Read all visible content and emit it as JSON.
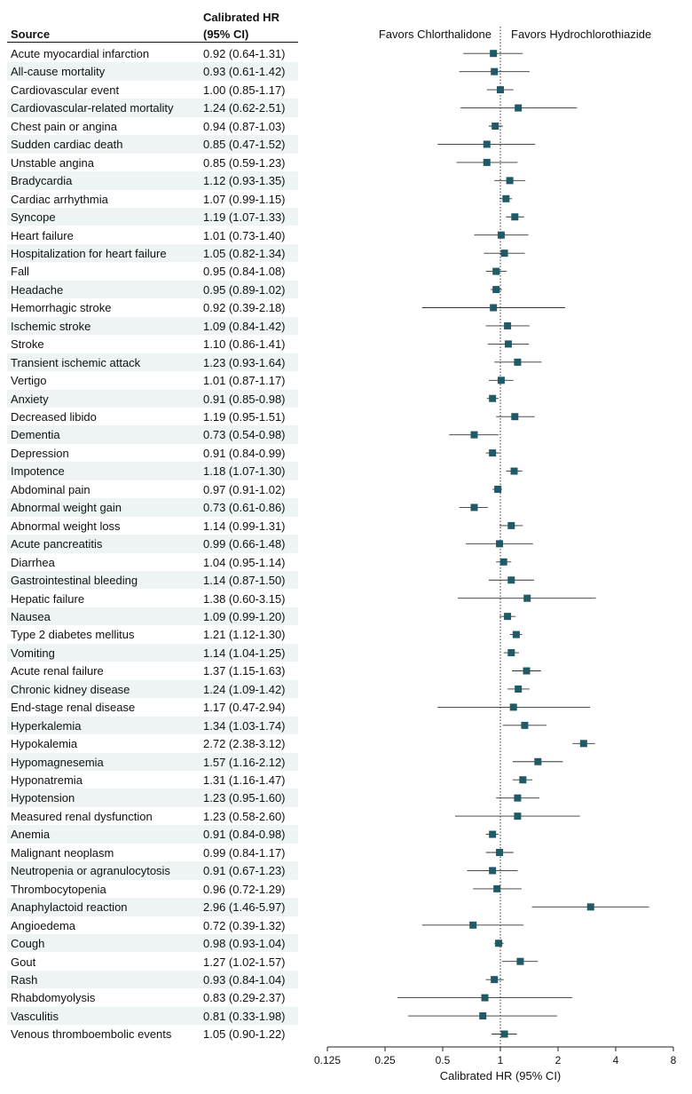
{
  "headers": {
    "source": "Source",
    "hr_line1": "Calibrated HR",
    "hr_line2": "(95% CI)"
  },
  "favors": {
    "left": "Favors Chlorthalidone",
    "right": "Favors Hydrochlorothiazide"
  },
  "colors": {
    "marker": "#1f5a66",
    "ci_line": "#333333",
    "row_shade": "#eef4f4"
  },
  "chart_data": {
    "type": "forest",
    "xlabel": "Calibrated HR (95% CI)",
    "xscale": "log2",
    "xlim": [
      0.125,
      8
    ],
    "xticks": [
      0.125,
      0.25,
      0.5,
      1,
      2,
      4,
      8
    ],
    "xtick_labels": [
      "0.125",
      "0.25",
      "0.5",
      "1",
      "2",
      "4",
      "8"
    ],
    "reference_line": 1,
    "rows": [
      {
        "source": "Acute myocardial infarction",
        "hr": 0.92,
        "lo": 0.64,
        "hi": 1.31,
        "label": "0.92 (0.64-1.31)"
      },
      {
        "source": "All-cause mortality",
        "hr": 0.93,
        "lo": 0.61,
        "hi": 1.42,
        "label": "0.93 (0.61-1.42)"
      },
      {
        "source": "Cardiovascular event",
        "hr": 1.0,
        "lo": 0.85,
        "hi": 1.17,
        "label": "1.00 (0.85-1.17)"
      },
      {
        "source": "Cardiovascular-related mortality",
        "hr": 1.24,
        "lo": 0.62,
        "hi": 2.51,
        "label": "1.24 (0.62-2.51)"
      },
      {
        "source": "Chest pain or angina",
        "hr": 0.94,
        "lo": 0.87,
        "hi": 1.03,
        "label": "0.94 (0.87-1.03)"
      },
      {
        "source": "Sudden cardiac death",
        "hr": 0.85,
        "lo": 0.47,
        "hi": 1.52,
        "label": "0.85 (0.47-1.52)"
      },
      {
        "source": "Unstable angina",
        "hr": 0.85,
        "lo": 0.59,
        "hi": 1.23,
        "label": "0.85 (0.59-1.23)"
      },
      {
        "source": "Bradycardia",
        "hr": 1.12,
        "lo": 0.93,
        "hi": 1.35,
        "label": "1.12 (0.93-1.35)"
      },
      {
        "source": "Cardiac arrhythmia",
        "hr": 1.07,
        "lo": 0.99,
        "hi": 1.15,
        "label": "1.07 (0.99-1.15)"
      },
      {
        "source": "Syncope",
        "hr": 1.19,
        "lo": 1.07,
        "hi": 1.33,
        "label": "1.19 (1.07-1.33)"
      },
      {
        "source": "Heart failure",
        "hr": 1.01,
        "lo": 0.73,
        "hi": 1.4,
        "label": "1.01 (0.73-1.40)"
      },
      {
        "source": "Hospitalization for heart failure",
        "hr": 1.05,
        "lo": 0.82,
        "hi": 1.34,
        "label": "1.05 (0.82-1.34)"
      },
      {
        "source": "Fall",
        "hr": 0.95,
        "lo": 0.84,
        "hi": 1.08,
        "label": "0.95 (0.84-1.08)"
      },
      {
        "source": "Headache",
        "hr": 0.95,
        "lo": 0.89,
        "hi": 1.02,
        "label": "0.95 (0.89-1.02)"
      },
      {
        "source": "Hemorrhagic stroke",
        "hr": 0.92,
        "lo": 0.39,
        "hi": 2.18,
        "label": "0.92 (0.39-2.18)"
      },
      {
        "source": "Ischemic stroke",
        "hr": 1.09,
        "lo": 0.84,
        "hi": 1.42,
        "label": "1.09 (0.84-1.42)"
      },
      {
        "source": "Stroke",
        "hr": 1.1,
        "lo": 0.86,
        "hi": 1.41,
        "label": "1.10 (0.86-1.41)"
      },
      {
        "source": "Transient ischemic attack",
        "hr": 1.23,
        "lo": 0.93,
        "hi": 1.64,
        "label": "1.23 (0.93-1.64)"
      },
      {
        "source": "Vertigo",
        "hr": 1.01,
        "lo": 0.87,
        "hi": 1.17,
        "label": "1.01 (0.87-1.17)"
      },
      {
        "source": "Anxiety",
        "hr": 0.91,
        "lo": 0.85,
        "hi": 0.98,
        "label": "0.91 (0.85-0.98)"
      },
      {
        "source": "Decreased libido",
        "hr": 1.19,
        "lo": 0.95,
        "hi": 1.51,
        "label": "1.19 (0.95-1.51)"
      },
      {
        "source": "Dementia",
        "hr": 0.73,
        "lo": 0.54,
        "hi": 0.98,
        "label": "0.73 (0.54-0.98)"
      },
      {
        "source": "Depression",
        "hr": 0.91,
        "lo": 0.84,
        "hi": 0.99,
        "label": "0.91 (0.84-0.99)"
      },
      {
        "source": "Impotence",
        "hr": 1.18,
        "lo": 1.07,
        "hi": 1.3,
        "label": "1.18 (1.07-1.30)"
      },
      {
        "source": "Abdominal pain",
        "hr": 0.97,
        "lo": 0.91,
        "hi": 1.02,
        "label": "0.97 (0.91-1.02)"
      },
      {
        "source": "Abnormal weight gain",
        "hr": 0.73,
        "lo": 0.61,
        "hi": 0.86,
        "label": "0.73 (0.61-0.86)"
      },
      {
        "source": "Abnormal weight loss",
        "hr": 1.14,
        "lo": 0.99,
        "hi": 1.31,
        "label": "1.14 (0.99-1.31)"
      },
      {
        "source": "Acute pancreatitis",
        "hr": 0.99,
        "lo": 0.66,
        "hi": 1.48,
        "label": "0.99 (0.66-1.48)"
      },
      {
        "source": "Diarrhea",
        "hr": 1.04,
        "lo": 0.95,
        "hi": 1.14,
        "label": "1.04 (0.95-1.14)"
      },
      {
        "source": "Gastrointestinal bleeding",
        "hr": 1.14,
        "lo": 0.87,
        "hi": 1.5,
        "label": "1.14 (0.87-1.50)"
      },
      {
        "source": "Hepatic failure",
        "hr": 1.38,
        "lo": 0.6,
        "hi": 3.15,
        "label": "1.38 (0.60-3.15)"
      },
      {
        "source": "Nausea",
        "hr": 1.09,
        "lo": 0.99,
        "hi": 1.2,
        "label": "1.09 (0.99-1.20)"
      },
      {
        "source": "Type 2 diabetes mellitus",
        "hr": 1.21,
        "lo": 1.12,
        "hi": 1.3,
        "label": "1.21 (1.12-1.30)"
      },
      {
        "source": "Vomiting",
        "hr": 1.14,
        "lo": 1.04,
        "hi": 1.25,
        "label": "1.14 (1.04-1.25)"
      },
      {
        "source": "Acute renal failure",
        "hr": 1.37,
        "lo": 1.15,
        "hi": 1.63,
        "label": "1.37 (1.15-1.63)"
      },
      {
        "source": "Chronic kidney disease",
        "hr": 1.24,
        "lo": 1.09,
        "hi": 1.42,
        "label": "1.24 (1.09-1.42)"
      },
      {
        "source": "End-stage renal disease",
        "hr": 1.17,
        "lo": 0.47,
        "hi": 2.94,
        "label": "1.17 (0.47-2.94)"
      },
      {
        "source": "Hyperkalemia",
        "hr": 1.34,
        "lo": 1.03,
        "hi": 1.74,
        "label": "1.34 (1.03-1.74)"
      },
      {
        "source": "Hypokalemia",
        "hr": 2.72,
        "lo": 2.38,
        "hi": 3.12,
        "label": "2.72 (2.38-3.12)"
      },
      {
        "source": "Hypomagnesemia",
        "hr": 1.57,
        "lo": 1.16,
        "hi": 2.12,
        "label": "1.57 (1.16-2.12)"
      },
      {
        "source": "Hyponatremia",
        "hr": 1.31,
        "lo": 1.16,
        "hi": 1.47,
        "label": "1.31 (1.16-1.47)"
      },
      {
        "source": "Hypotension",
        "hr": 1.23,
        "lo": 0.95,
        "hi": 1.6,
        "label": "1.23 (0.95-1.60)"
      },
      {
        "source": "Measured renal dysfunction",
        "hr": 1.23,
        "lo": 0.58,
        "hi": 2.6,
        "label": "1.23 (0.58-2.60)"
      },
      {
        "source": "Anemia",
        "hr": 0.91,
        "lo": 0.84,
        "hi": 0.98,
        "label": "0.91 (0.84-0.98)"
      },
      {
        "source": "Malignant neoplasm",
        "hr": 0.99,
        "lo": 0.84,
        "hi": 1.17,
        "label": "0.99 (0.84-1.17)"
      },
      {
        "source": "Neutropenia or agranulocytosis",
        "hr": 0.91,
        "lo": 0.67,
        "hi": 1.23,
        "label": "0.91 (0.67-1.23)"
      },
      {
        "source": "Thrombocytopenia",
        "hr": 0.96,
        "lo": 0.72,
        "hi": 1.29,
        "label": "0.96 (0.72-1.29)"
      },
      {
        "source": "Anaphylactoid reaction",
        "hr": 2.96,
        "lo": 1.46,
        "hi": 5.97,
        "label": "2.96 (1.46-5.97)"
      },
      {
        "source": "Angioedema",
        "hr": 0.72,
        "lo": 0.39,
        "hi": 1.32,
        "label": "0.72 (0.39-1.32)"
      },
      {
        "source": "Cough",
        "hr": 0.98,
        "lo": 0.93,
        "hi": 1.04,
        "label": "0.98 (0.93-1.04)"
      },
      {
        "source": "Gout",
        "hr": 1.27,
        "lo": 1.02,
        "hi": 1.57,
        "label": "1.27 (1.02-1.57)"
      },
      {
        "source": "Rash",
        "hr": 0.93,
        "lo": 0.84,
        "hi": 1.04,
        "label": "0.93 (0.84-1.04)"
      },
      {
        "source": "Rhabdomyolysis",
        "hr": 0.83,
        "lo": 0.29,
        "hi": 2.37,
        "label": "0.83 (0.29-2.37)"
      },
      {
        "source": "Vasculitis",
        "hr": 0.81,
        "lo": 0.33,
        "hi": 1.98,
        "label": "0.81 (0.33-1.98)"
      },
      {
        "source": "Venous thromboembolic events",
        "hr": 1.05,
        "lo": 0.9,
        "hi": 1.22,
        "label": "1.05 (0.90-1.22)"
      }
    ]
  }
}
